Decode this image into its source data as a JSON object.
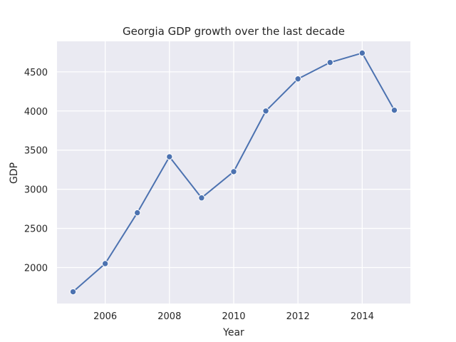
{
  "colors": {
    "plot_background": "#eaeaf2",
    "grid": "#ffffff",
    "line": "#4c72b0"
  },
  "chart_data": {
    "type": "line",
    "title": "Georgia GDP growth over the last decade",
    "xlabel": "Year",
    "ylabel": "GDP",
    "x": [
      2005,
      2006,
      2007,
      2008,
      2009,
      2010,
      2011,
      2012,
      2013,
      2014,
      2015
    ],
    "series": [
      {
        "values": [
          1690,
          2050,
          2700,
          3415,
          2890,
          3225,
          4000,
          4410,
          4620,
          4740,
          4010
        ],
        "marker": "circle"
      }
    ],
    "xlim": [
      2004.5,
      2015.5
    ],
    "ylim": [
      1540,
      4890
    ],
    "xticks": [
      2006,
      2008,
      2010,
      2012,
      2014
    ],
    "yticks": [
      2000,
      2500,
      3000,
      3500,
      4000,
      4500
    ],
    "grid": true,
    "legend": "none"
  }
}
